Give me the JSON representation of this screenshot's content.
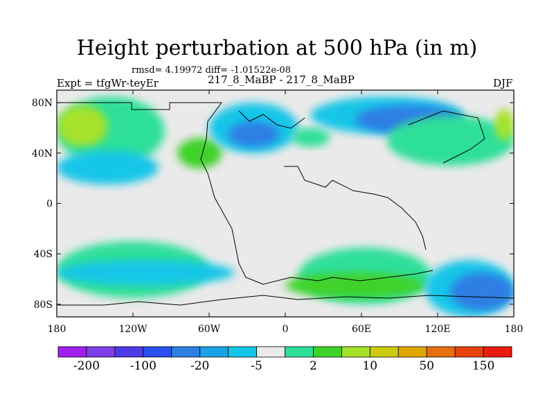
{
  "chart_data": {
    "type": "heatmap",
    "title": "Height perturbation at 500 hPa (in m)",
    "stats_text": "rmsd= 4.19972 diff= -1.01522e-08",
    "left_label": "Expt = tfgWr-teyEr",
    "center_label": "217_8_MaBP - 217_8_MaBP",
    "right_label": "DJF",
    "x_ticks": [
      "180",
      "120W",
      "60W",
      "0",
      "60E",
      "120E",
      "180"
    ],
    "y_ticks": [
      "80N",
      "40N",
      "0",
      "40S",
      "80S"
    ],
    "xlim": [
      -180,
      180
    ],
    "ylim": [
      -90,
      90
    ],
    "colorbar": {
      "labels": [
        "-200",
        "-100",
        "-20",
        "-5",
        "2",
        "10",
        "50",
        "150"
      ],
      "colors": [
        "#a020f0",
        "#7d3ee8",
        "#4b3ce8",
        "#2a50ee",
        "#2e7ee4",
        "#1aa2e8",
        "#13c6e8",
        "#eaeaea",
        "#2edf9a",
        "#3fd22a",
        "#a6e22a",
        "#cccc10",
        "#e0a800",
        "#e67010",
        "#e64210",
        "#e81c10"
      ]
    },
    "regions": [
      {
        "name": "positive",
        "level": 2,
        "color": "#2edf9a",
        "lon": [
          -180,
          -95
        ],
        "lat": [
          30,
          85
        ]
      },
      {
        "name": "positive",
        "level": 10,
        "color": "#a6e22a",
        "lon": [
          -180,
          -140
        ],
        "lat": [
          45,
          78
        ]
      },
      {
        "name": "negative",
        "level": -5,
        "color": "#13c6e8",
        "lon": [
          -180,
          -100
        ],
        "lat": [
          15,
          42
        ]
      },
      {
        "name": "positive",
        "level": 10,
        "color": "#3fd22a",
        "lon": [
          -85,
          -50
        ],
        "lat": [
          28,
          52
        ]
      },
      {
        "name": "negative",
        "level": -5,
        "color": "#13c6e8",
        "lon": [
          -60,
          10
        ],
        "lat": [
          40,
          80
        ]
      },
      {
        "name": "negative",
        "level": -20,
        "color": "#2e7ee4",
        "lon": [
          -45,
          -5
        ],
        "lat": [
          45,
          65
        ]
      },
      {
        "name": "positive",
        "level": 2,
        "color": "#2edf9a",
        "lon": [
          5,
          35
        ],
        "lat": [
          45,
          60
        ]
      },
      {
        "name": "negative",
        "level": -5,
        "color": "#13c6e8",
        "lon": [
          20,
          140
        ],
        "lat": [
          55,
          85
        ]
      },
      {
        "name": "negative",
        "level": -20,
        "color": "#2e7ee4",
        "lon": [
          55,
          140
        ],
        "lat": [
          55,
          78
        ]
      },
      {
        "name": "positive",
        "level": 2,
        "color": "#2edf9a",
        "lon": [
          80,
          180
        ],
        "lat": [
          30,
          70
        ]
      },
      {
        "name": "positive",
        "level": 10,
        "color": "#a6e22a",
        "lon": [
          165,
          180
        ],
        "lat": [
          50,
          75
        ]
      },
      {
        "name": "positive",
        "level": 2,
        "color": "#2edf9a",
        "lon": [
          -180,
          -60
        ],
        "lat": [
          -75,
          -30
        ]
      },
      {
        "name": "negative",
        "level": -5,
        "color": "#13c6e8",
        "lon": [
          -180,
          -40
        ],
        "lat": [
          -65,
          -45
        ]
      },
      {
        "name": "positive",
        "level": 2,
        "color": "#2edf9a",
        "lon": [
          10,
          115
        ],
        "lat": [
          -80,
          -35
        ]
      },
      {
        "name": "positive",
        "level": 10,
        "color": "#3fd22a",
        "lon": [
          0,
          110
        ],
        "lat": [
          -75,
          -55
        ]
      },
      {
        "name": "negative",
        "level": -5,
        "color": "#13c6e8",
        "lon": [
          110,
          180
        ],
        "lat": [
          -90,
          -45
        ]
      },
      {
        "name": "negative",
        "level": -20,
        "color": "#2e7ee4",
        "lon": [
          130,
          180
        ],
        "lat": [
          -85,
          -55
        ]
      }
    ]
  }
}
